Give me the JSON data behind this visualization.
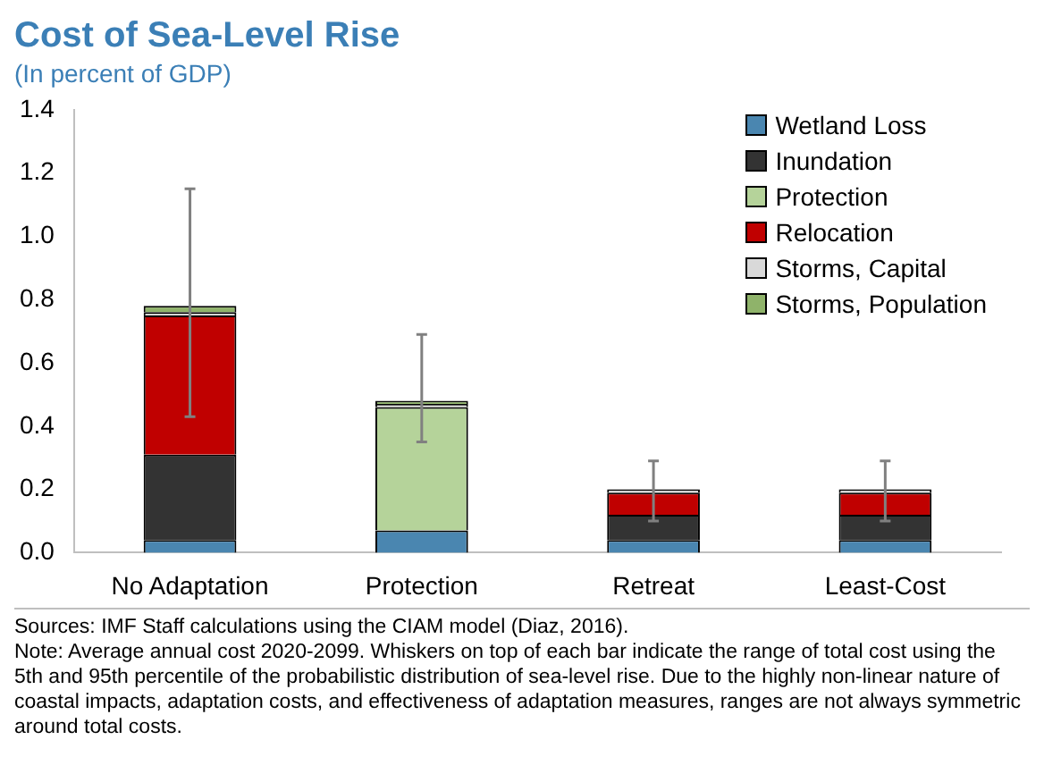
{
  "chart_data": {
    "type": "bar",
    "title": "Cost of Sea-Level Rise",
    "subtitle": "(In percent of GDP)",
    "categories": [
      "No Adaptation",
      "Protection",
      "Retreat",
      "Least-Cost"
    ],
    "stacked": true,
    "series": [
      {
        "name": "Wetland Loss",
        "color": "#4a86b0",
        "values": [
          0.04,
          0.07,
          0.04,
          0.04
        ]
      },
      {
        "name": "Inundation",
        "color": "#333333",
        "values": [
          0.27,
          0,
          0.08,
          0.08
        ]
      },
      {
        "name": "Protection",
        "color": "#b5d39a",
        "values": [
          0,
          0.39,
          0,
          0
        ]
      },
      {
        "name": "Relocation",
        "color": "#c00000",
        "values": [
          0.44,
          0,
          0.07,
          0.07
        ]
      },
      {
        "name": "Storms, Capital",
        "color": "#d9d9d9",
        "values": [
          0.01,
          0.01,
          0.01,
          0.01
        ]
      },
      {
        "name": "Storms, Population",
        "color": "#8fb36a",
        "values": [
          0.02,
          0.01,
          0,
          0
        ],
        "errors": [
          [
            0.43,
            1.15
          ],
          [
            0.35,
            0.69
          ],
          [
            0.1,
            0.29
          ],
          [
            0.1,
            0.29
          ]
        ]
      }
    ],
    "ylim": [
      0,
      1.4
    ],
    "yticks": [
      {
        "value": 0,
        "label": "0.0"
      },
      {
        "value": 0.2,
        "label": "0.2"
      },
      {
        "value": 0.4,
        "label": "0.4"
      },
      {
        "value": 0.6,
        "label": "0.6"
      },
      {
        "value": 0.8,
        "label": "0.8"
      },
      {
        "value": 1,
        "label": "1.0"
      },
      {
        "value": 1.2,
        "label": "1.2"
      },
      {
        "value": 1.4,
        "label": "1.4"
      }
    ],
    "grid": false,
    "legend": "top right",
    "annotations": [
      "Sources: IMF Staff calculations using the CIAM model (Diaz, 2016).",
      "Note: Average annual cost 2020-2099. Whiskers on top of each bar indicate the range of total cost using the 5th and 95th percentile of the probabilistic distribution of sea-level rise. Due to the highly non-linear nature of coastal impacts, adaptation costs, and effectiveness of adaptation measures, ranges are not always symmetric around total costs."
    ]
  }
}
